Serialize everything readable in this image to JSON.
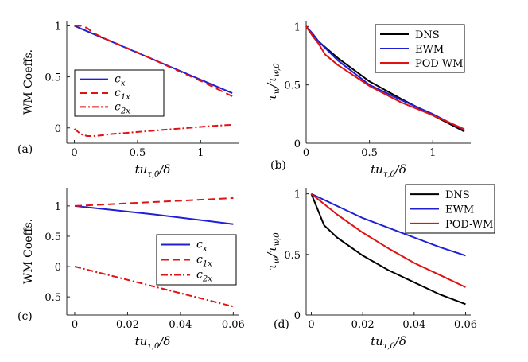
{
  "colors": {
    "blue": "#1f1fd6",
    "red": "#e11212",
    "black": "#000000"
  },
  "chart_data": [
    {
      "panel_label": "(a)",
      "type": "line",
      "ylabel": "WM Coeffs.",
      "xlabel": "tu_{τ,0}/δ",
      "xlim": [
        -0.06,
        1.3
      ],
      "ylim": [
        -0.15,
        1.05
      ],
      "xticks": [
        0,
        0.5,
        1
      ],
      "xtick_labels": [
        "0",
        "0.5",
        "1"
      ],
      "yticks": [
        0,
        0.5,
        1
      ],
      "ytick_labels": [
        "0",
        "0.5",
        "1"
      ],
      "legend_position": "middle-left",
      "series": [
        {
          "name": "c_x",
          "label_main": "c",
          "label_sub": "x",
          "color": "blue",
          "dash": "solid",
          "x": [
            0,
            1.25
          ],
          "y": [
            1.0,
            0.34
          ]
        },
        {
          "name": "c_1x",
          "label_main": "c",
          "label_sub": "1x",
          "color": "red",
          "dash": "dashed",
          "x": [
            0,
            0.05,
            0.1,
            0.15,
            0.25,
            0.5,
            0.75,
            1.0,
            1.25
          ],
          "y": [
            1.0,
            1.0,
            0.98,
            0.93,
            0.87,
            0.74,
            0.6,
            0.46,
            0.31
          ]
        },
        {
          "name": "c_2x",
          "label_main": "c",
          "label_sub": "2x",
          "color": "red",
          "dash": "dashdot",
          "x": [
            0,
            0.05,
            0.1,
            0.15,
            0.2,
            0.3,
            0.4,
            0.5,
            0.6,
            0.7,
            0.8,
            0.9,
            1.0,
            1.1,
            1.25
          ],
          "y": [
            -0.01,
            -0.06,
            -0.08,
            -0.08,
            -0.075,
            -0.06,
            -0.05,
            -0.04,
            -0.03,
            -0.02,
            -0.01,
            0.0,
            0.01,
            0.02,
            0.03
          ]
        }
      ]
    },
    {
      "panel_label": "(b)",
      "type": "line",
      "ylabel": "τ_w/τ_{w,0}",
      "xlabel": "tu_{τ,0}/δ",
      "xlim": [
        0,
        1.3
      ],
      "ylim": [
        0,
        1.05
      ],
      "xticks": [
        0,
        0.5,
        1
      ],
      "xtick_labels": [
        "0",
        "0.5",
        "1"
      ],
      "yticks": [
        0,
        0.5,
        1
      ],
      "ytick_labels": [
        "0",
        "0.5",
        "1"
      ],
      "legend_position": "top-right",
      "series": [
        {
          "name": "DNS",
          "color": "black",
          "dash": "solid",
          "x": [
            0,
            0.05,
            0.1,
            0.25,
            0.5,
            0.75,
            1.0,
            1.25
          ],
          "y": [
            1.0,
            0.93,
            0.87,
            0.73,
            0.53,
            0.38,
            0.24,
            0.1
          ]
        },
        {
          "name": "EWM",
          "color": "blue",
          "dash": "solid",
          "x": [
            0,
            0.05,
            0.1,
            0.25,
            0.5,
            0.75,
            1.0,
            1.25
          ],
          "y": [
            1.0,
            0.94,
            0.87,
            0.71,
            0.5,
            0.37,
            0.25,
            0.11
          ]
        },
        {
          "name": "POD-WM",
          "color": "red",
          "dash": "solid",
          "x": [
            0,
            0.05,
            0.1,
            0.15,
            0.25,
            0.5,
            0.75,
            1.0,
            1.25
          ],
          "y": [
            1.0,
            0.92,
            0.85,
            0.76,
            0.67,
            0.49,
            0.35,
            0.24,
            0.12
          ]
        }
      ]
    },
    {
      "panel_label": "(c)",
      "type": "line",
      "ylabel": "WM Coeffs.",
      "xlabel": "tu_{τ,0}/δ",
      "xlim": [
        -0.003,
        0.062
      ],
      "ylim": [
        -0.8,
        1.3
      ],
      "xticks": [
        0,
        0.02,
        0.04,
        0.06
      ],
      "xtick_labels": [
        "0",
        "0.02",
        "0.04",
        "0.06"
      ],
      "yticks": [
        -0.5,
        0,
        0.5,
        1
      ],
      "ytick_labels": [
        "-0.5",
        "0",
        "0.5",
        "1"
      ],
      "legend_position": "middle-right",
      "series": [
        {
          "name": "c_x",
          "label_main": "c",
          "label_sub": "x",
          "color": "blue",
          "dash": "solid",
          "x": [
            0,
            0.03,
            0.06
          ],
          "y": [
            1.0,
            0.86,
            0.7
          ]
        },
        {
          "name": "c_1x",
          "label_main": "c",
          "label_sub": "1x",
          "color": "red",
          "dash": "dashed",
          "x": [
            0,
            0.06
          ],
          "y": [
            1.0,
            1.13
          ]
        },
        {
          "name": "c_2x",
          "label_main": "c",
          "label_sub": "2x",
          "color": "red",
          "dash": "dashdot",
          "x": [
            0,
            0.06
          ],
          "y": [
            0.0,
            -0.66
          ]
        }
      ]
    },
    {
      "panel_label": "(d)",
      "type": "line",
      "ylabel": "τ_w/τ_{w,0}",
      "xlabel": "tu_{τ,0}/δ",
      "xlim": [
        -0.002,
        0.062
      ],
      "ylim": [
        0,
        1.05
      ],
      "xticks": [
        0,
        0.02,
        0.04,
        0.06
      ],
      "xtick_labels": [
        "0",
        "0.02",
        "0.04",
        "0.06"
      ],
      "yticks": [
        0,
        0.5,
        1
      ],
      "ytick_labels": [
        "0",
        "0.5",
        "1"
      ],
      "legend_position": "top-right",
      "series": [
        {
          "name": "DNS",
          "color": "black",
          "dash": "solid",
          "x": [
            0,
            0.005,
            0.01,
            0.02,
            0.03,
            0.04,
            0.05,
            0.06
          ],
          "y": [
            1.0,
            0.74,
            0.64,
            0.49,
            0.37,
            0.27,
            0.17,
            0.09
          ]
        },
        {
          "name": "EWM",
          "color": "blue",
          "dash": "solid",
          "x": [
            0,
            0.01,
            0.02,
            0.03,
            0.04,
            0.05,
            0.06
          ],
          "y": [
            1.0,
            0.9,
            0.8,
            0.72,
            0.64,
            0.56,
            0.49
          ]
        },
        {
          "name": "POD-WM",
          "color": "red",
          "dash": "solid",
          "x": [
            0,
            0.01,
            0.02,
            0.03,
            0.04,
            0.05,
            0.06
          ],
          "y": [
            1.0,
            0.83,
            0.68,
            0.55,
            0.43,
            0.33,
            0.23
          ]
        }
      ]
    }
  ]
}
